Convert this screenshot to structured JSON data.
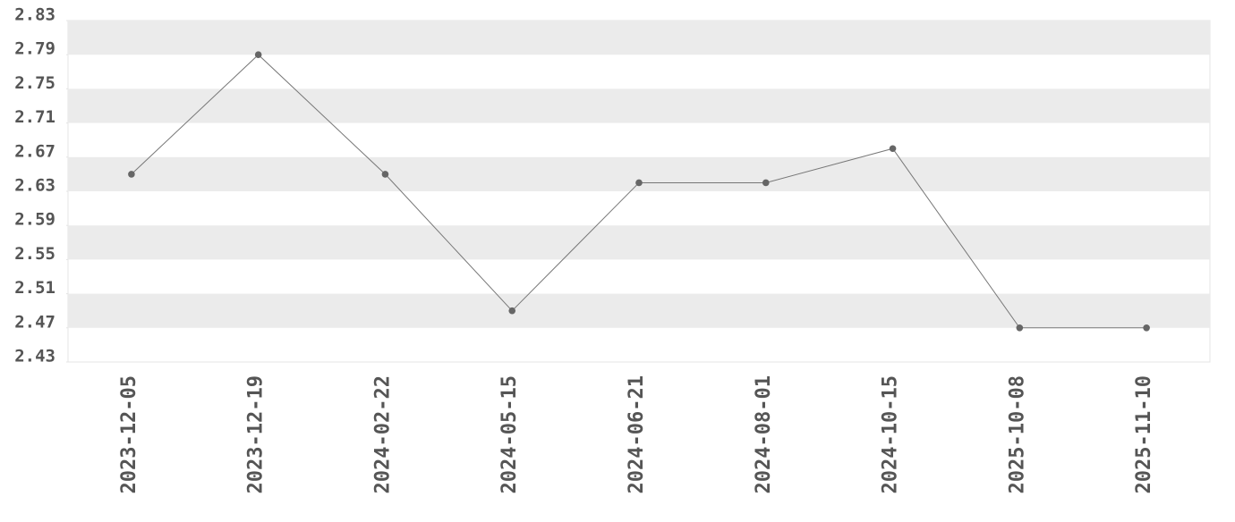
{
  "chart_data": {
    "type": "line",
    "categories": [
      "2023-12-05",
      "2023-12-19",
      "2024-02-22",
      "2024-05-15",
      "2024-06-21",
      "2024-08-01",
      "2024-10-15",
      "2025-10-08",
      "2025-11-10"
    ],
    "values": [
      2.65,
      2.79,
      2.65,
      2.49,
      2.64,
      2.64,
      2.68,
      2.47,
      2.47
    ],
    "color": "#777777",
    "ylim": [
      2.43,
      2.83
    ],
    "yticks": [
      2.43,
      2.47,
      2.51,
      2.55,
      2.59,
      2.63,
      2.67,
      2.71,
      2.75,
      2.79,
      2.83
    ],
    "grid": true
  }
}
